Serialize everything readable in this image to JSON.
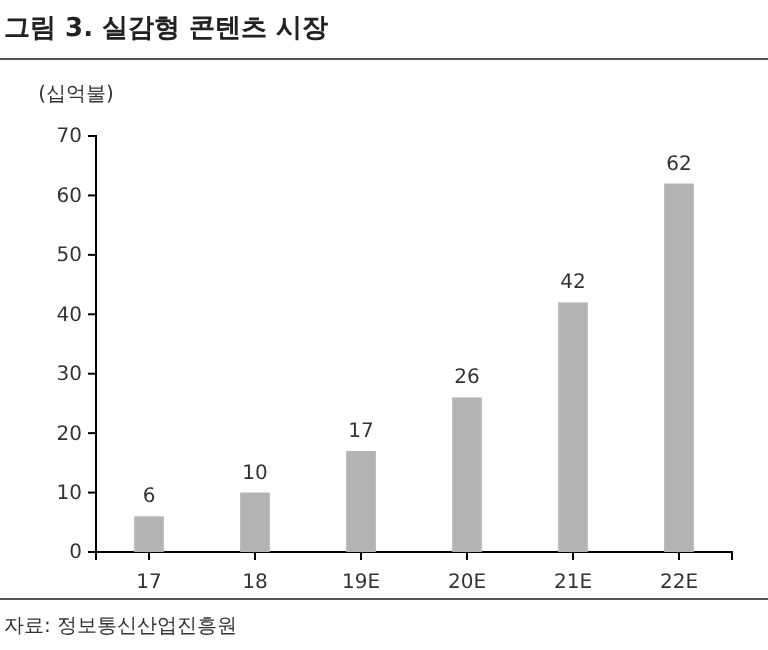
{
  "chart_data": {
    "type": "bar",
    "title": "그림 3. 실감형 콘텐츠 시장",
    "ylabel": "(십억불)",
    "categories": [
      "17",
      "18",
      "19E",
      "20E",
      "21E",
      "22E"
    ],
    "values": [
      6,
      10,
      17,
      26,
      42,
      62
    ],
    "color": "#b3b3b3",
    "ylim": [
      0,
      70
    ],
    "yticks": [
      0,
      10,
      20,
      30,
      40,
      50,
      60,
      70
    ],
    "data_labels": true,
    "grid": false,
    "annotations": [
      "자료: 정보통신산업진흥원"
    ]
  }
}
